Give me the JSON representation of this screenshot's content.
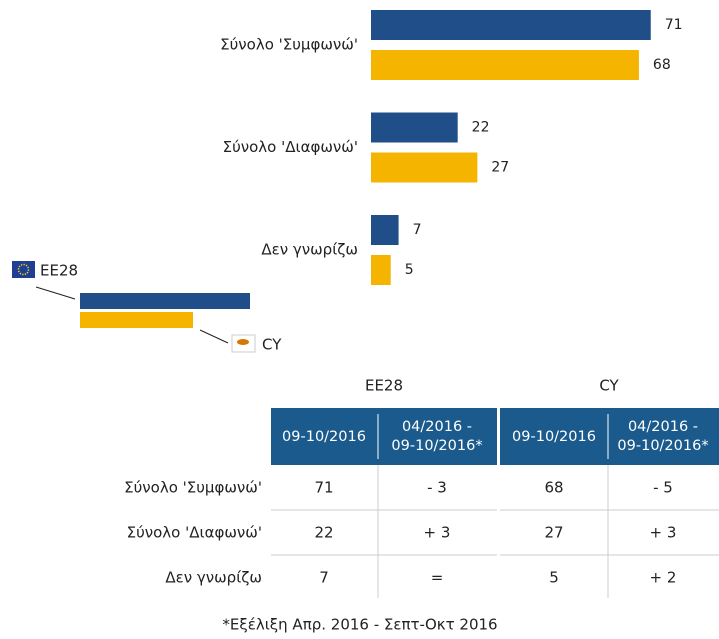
{
  "chart_data": {
    "type": "bar",
    "orientation": "horizontal",
    "categories": [
      "Σύνολο 'Συμφωνώ'",
      "Σύνολο 'Διαφωνώ'",
      "Δεν γνωρίζω"
    ],
    "series": [
      {
        "name": "EE28",
        "color": "#1f4e89",
        "values": [
          71,
          22,
          7
        ]
      },
      {
        "name": "CY",
        "color": "#f5b400",
        "values": [
          68,
          27,
          5
        ]
      }
    ]
  },
  "table": {
    "groups": [
      "EE28",
      "CY"
    ],
    "columns": [
      "09-10/2016",
      "04/2016 -\n09-10/2016*",
      "09-10/2016",
      "04/2016 -\n09-10/2016*"
    ],
    "rows": [
      {
        "label": "Σύνολο 'Συμφωνώ'",
        "cells": [
          "71",
          "- 3",
          "68",
          "- 5"
        ]
      },
      {
        "label": "Σύνολο 'Διαφωνώ'",
        "cells": [
          "22",
          "+ 3",
          "27",
          "+ 3"
        ]
      },
      {
        "label": "Δεν γνωρίζω",
        "cells": [
          "7",
          "=",
          "5",
          "+ 2"
        ]
      }
    ],
    "footnote": "*Εξέλιξη Απρ. 2016 - Σεπτ-Οκτ 2016"
  }
}
